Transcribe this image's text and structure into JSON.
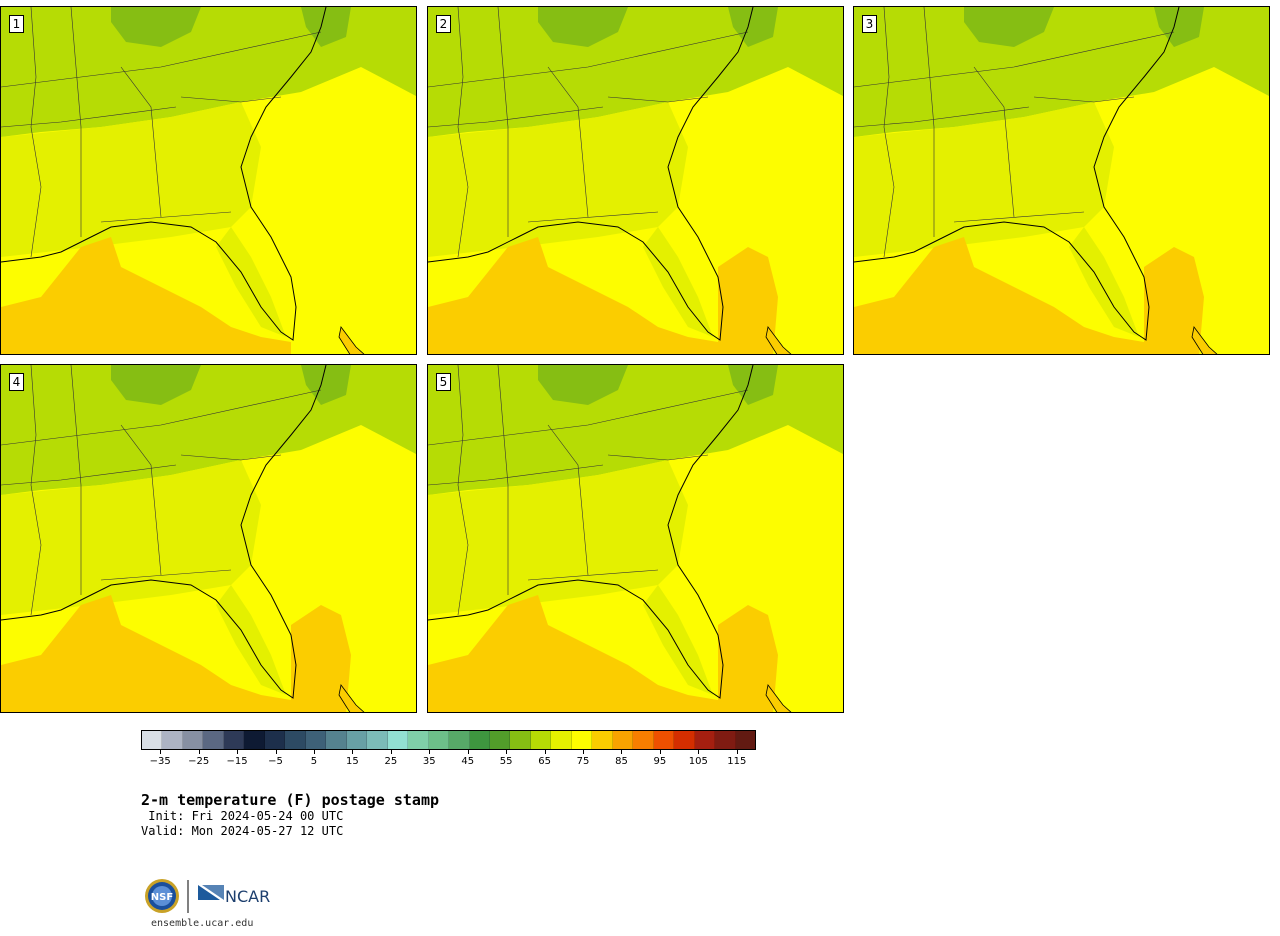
{
  "panels": [
    {
      "label": "1"
    },
    {
      "label": "2"
    },
    {
      "label": "3"
    },
    {
      "label": "4"
    },
    {
      "label": "5"
    }
  ],
  "colorbar": {
    "colors": [
      "#d9dfe6",
      "#adb4c4",
      "#8790a3",
      "#5b6882",
      "#2e3a57",
      "#0e1a33",
      "#1d2f4b",
      "#2d4a63",
      "#3e6178",
      "#55828f",
      "#68a0a5",
      "#7cbcb8",
      "#92e0d2",
      "#7fcfa8",
      "#6dbf89",
      "#57a968",
      "#3e963f",
      "#529e2a",
      "#86be13",
      "#b6dc05",
      "#e4f000",
      "#fdfd00",
      "#fbcd00",
      "#f9a300",
      "#f77e00",
      "#ee5000",
      "#d42e00",
      "#a51f10",
      "#7f1b12",
      "#621a12"
    ],
    "tick_labels": [
      "−35",
      "−25",
      "−15",
      "−5",
      "5",
      "15",
      "25",
      "35",
      "45",
      "55",
      "65",
      "75",
      "85",
      "95",
      "105",
      "115"
    ],
    "min": -40,
    "max": 120
  },
  "title": "2-m temperature (F) postage stamp",
  "init": " Init: Fri 2024-05-24 00 UTC",
  "valid": "Valid: Mon 2024-05-27 12 UTC",
  "logos": {
    "nsf": "NSF",
    "ncar": "NCAR"
  },
  "website": "ensemble.ucar.edu"
}
